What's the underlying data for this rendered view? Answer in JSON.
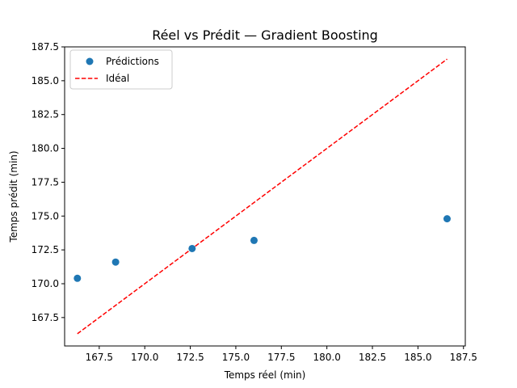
{
  "chart_data": {
    "type": "scatter",
    "title": "Réel vs Prédit — Gradient Boosting",
    "xlabel": "Temps réel (min)",
    "ylabel": "Temps prédit (min)",
    "xlim": [
      165.6,
      187.6
    ],
    "ylim": [
      165.4,
      187.5
    ],
    "xticks": [
      167.5,
      170.0,
      172.5,
      175.0,
      177.5,
      180.0,
      182.5,
      185.0,
      187.5
    ],
    "yticks": [
      167.5,
      170.0,
      172.5,
      175.0,
      177.5,
      180.0,
      182.5,
      185.0,
      187.5
    ],
    "xtick_labels": [
      "167.5",
      "170.0",
      "172.5",
      "175.0",
      "177.5",
      "180.0",
      "182.5",
      "185.0",
      "187.5"
    ],
    "ytick_labels": [
      "167.5",
      "170.0",
      "172.5",
      "175.0",
      "177.5",
      "180.0",
      "182.5",
      "185.0",
      "187.5"
    ],
    "grid": false,
    "legend_position": "top-left",
    "series": [
      {
        "name": "Prédictions",
        "kind": "scatter",
        "color": "#1f77b4",
        "points": [
          {
            "x": 166.3,
            "y": 170.4
          },
          {
            "x": 168.4,
            "y": 171.6
          },
          {
            "x": 172.6,
            "y": 172.6
          },
          {
            "x": 176.0,
            "y": 173.2
          },
          {
            "x": 186.6,
            "y": 174.8
          }
        ]
      },
      {
        "name": "Idéal",
        "kind": "line",
        "style": "dashed",
        "color": "#ff0000",
        "points": [
          {
            "x": 166.3,
            "y": 166.3
          },
          {
            "x": 186.6,
            "y": 186.6
          }
        ]
      }
    ]
  }
}
